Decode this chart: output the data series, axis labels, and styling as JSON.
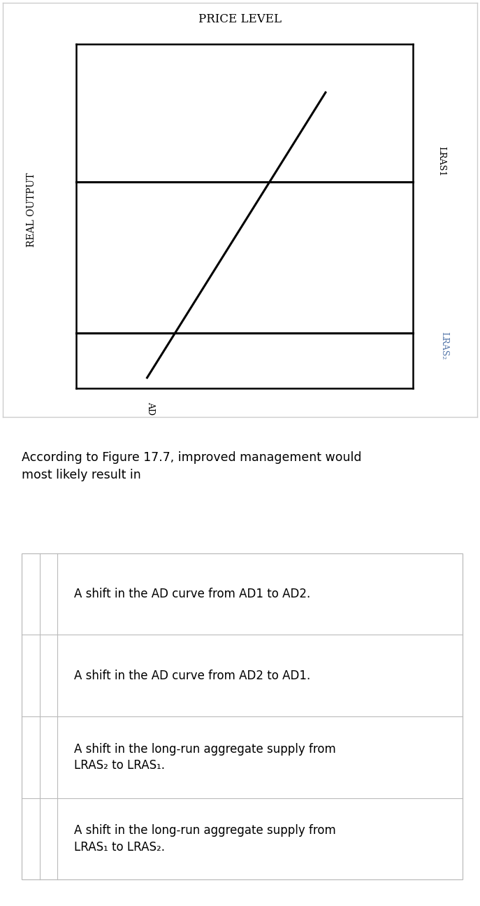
{
  "title": "PRICE LEVEL",
  "ylabel": "REAL OUTPUT",
  "background_color": "#ffffff",
  "chart_bg": "#ffffff",
  "border_color": "#000000",
  "lras1_label": "LRAS1",
  "lras2_label": "LRAS₂",
  "ad_label": "AD",
  "question_text": "According to Figure 17.7, improved management would\nmost likely result in",
  "options": [
    "A shift in the AD curve from AD1 to AD2.",
    "A shift in the AD curve from AD2 to AD1.",
    "A shift in the long-run aggregate supply from\nLRAS₂ to LRAS₁.",
    "A shift in the long-run aggregate supply from\nLRAS₁ to LRAS₂."
  ],
  "fig_width": 6.87,
  "fig_height": 12.95
}
